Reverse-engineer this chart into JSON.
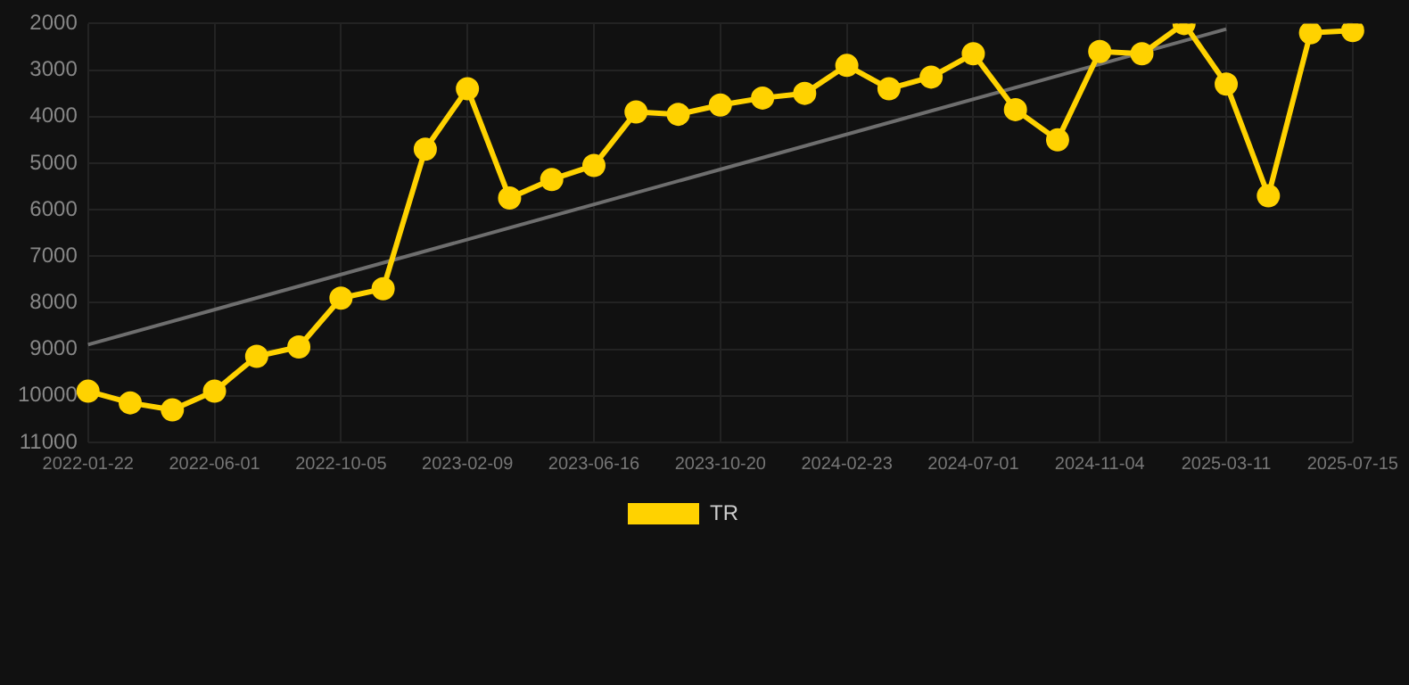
{
  "chart_data": {
    "type": "line",
    "categories": [
      "2022-01-22",
      null,
      null,
      "2022-06-01",
      null,
      null,
      "2022-10-05",
      null,
      null,
      "2023-02-09",
      null,
      null,
      "2023-06-16",
      null,
      null,
      "2023-10-20",
      null,
      null,
      "2024-02-23",
      null,
      null,
      "2024-07-01",
      null,
      null,
      "2024-11-04",
      null,
      null,
      "2025-03-11",
      null,
      null,
      "2025-07-15"
    ],
    "series": [
      {
        "name": "TR",
        "color": "#ffd200",
        "marker": "circle",
        "values": [
          9900,
          10150,
          10300,
          9900,
          9150,
          8950,
          7900,
          7700,
          4700,
          3400,
          5750,
          5350,
          5050,
          3900,
          3950,
          3750,
          3600,
          3500,
          2900,
          3400,
          3150,
          2650,
          3850,
          4500,
          2600,
          2650,
          2000,
          3300,
          5700,
          2200,
          2150
        ]
      },
      {
        "type": "line",
        "color": "#6e6e6e",
        "marker": "none",
        "values": [
          8900,
          null,
          null,
          null,
          null,
          null,
          null,
          null,
          null,
          null,
          null,
          null,
          null,
          null,
          null,
          null,
          null,
          null,
          null,
          null,
          null,
          null,
          null,
          null,
          null,
          null,
          null,
          2120,
          null,
          null,
          null
        ]
      }
    ],
    "ylim": [
      11000,
      2000
    ],
    "yticks": [
      2000,
      3000,
      4000,
      5000,
      6000,
      7000,
      8000,
      9000,
      10000,
      11000
    ],
    "grid": true,
    "legend": "bottom"
  }
}
